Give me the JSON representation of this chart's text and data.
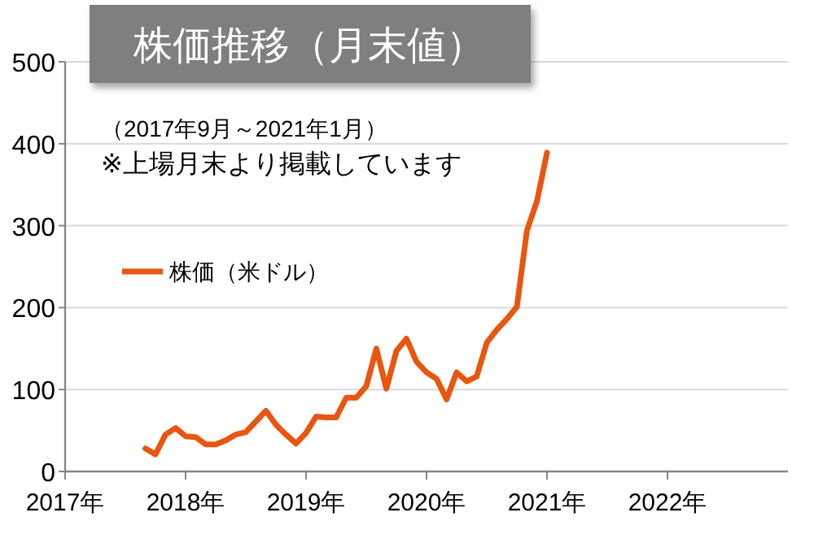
{
  "chart_data": {
    "type": "line",
    "title": "株価推移（月末値）",
    "annotations": [
      "（2017年9月～2021年1月）",
      "※上場月末より掲載しています"
    ],
    "x": [
      "2017-09",
      "2017-10",
      "2017-11",
      "2017-12",
      "2018-01",
      "2018-02",
      "2018-03",
      "2018-04",
      "2018-05",
      "2018-06",
      "2018-07",
      "2018-08",
      "2018-09",
      "2018-10",
      "2018-11",
      "2018-12",
      "2019-01",
      "2019-02",
      "2019-03",
      "2019-04",
      "2019-05",
      "2019-06",
      "2019-07",
      "2019-08",
      "2019-09",
      "2019-10",
      "2019-11",
      "2019-12",
      "2020-01",
      "2020-02",
      "2020-03",
      "2020-04",
      "2020-05",
      "2020-06",
      "2020-07",
      "2020-08",
      "2020-09",
      "2020-10",
      "2020-11",
      "2020-12",
      "2021-01"
    ],
    "series": [
      {
        "name": "株価（米ドル）",
        "color": "#e8560f",
        "values": [
          28,
          21,
          45,
          53,
          43,
          42,
          33,
          33,
          38,
          45,
          48,
          61,
          74,
          57,
          45,
          34,
          47,
          67,
          66,
          66,
          90,
          90,
          104,
          150,
          101,
          147,
          162,
          134,
          121,
          113,
          88,
          121,
          110,
          116,
          157,
          173,
          186,
          201,
          294,
          330,
          389
        ]
      }
    ],
    "xlim": [
      "2017-01",
      "2023-01"
    ],
    "xticks": [
      {
        "value": "2017-01",
        "label": "2017年"
      },
      {
        "value": "2018-01",
        "label": "2018年"
      },
      {
        "value": "2019-01",
        "label": "2019年"
      },
      {
        "value": "2020-01",
        "label": "2020年"
      },
      {
        "value": "2021-01",
        "label": "2021年"
      },
      {
        "value": "2022-01",
        "label": "2022年"
      }
    ],
    "ylim": [
      0,
      500
    ],
    "yticks": [
      0,
      100,
      200,
      300,
      400,
      500
    ],
    "grid": "y",
    "legend": "left",
    "marker": "none",
    "line_style": "solid"
  }
}
